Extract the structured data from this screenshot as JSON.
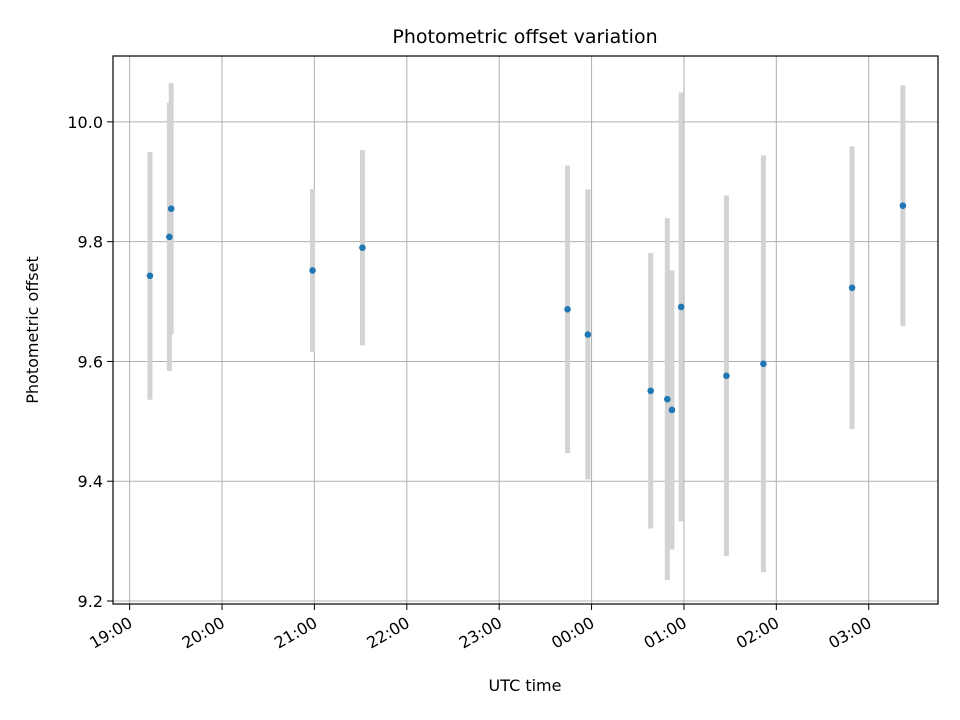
{
  "chart_data": {
    "type": "scatter",
    "title": "Photometric offset variation",
    "xlabel": "UTC time",
    "ylabel": "Photometric offset",
    "x_unit": "hours since 19:00 UTC",
    "xlim": [
      -0.18,
      8.75
    ],
    "ylim": [
      9.195,
      10.11
    ],
    "grid": true,
    "x_ticks": [
      {
        "value": 0,
        "label": "19:00"
      },
      {
        "value": 1,
        "label": "20:00"
      },
      {
        "value": 2,
        "label": "21:00"
      },
      {
        "value": 3,
        "label": "22:00"
      },
      {
        "value": 4,
        "label": "23:00"
      },
      {
        "value": 5,
        "label": "00:00"
      },
      {
        "value": 6,
        "label": "01:00"
      },
      {
        "value": 7,
        "label": "02:00"
      },
      {
        "value": 8,
        "label": "03:00"
      }
    ],
    "y_ticks": [
      {
        "value": 9.2,
        "label": "9.2"
      },
      {
        "value": 9.4,
        "label": "9.4"
      },
      {
        "value": 9.6,
        "label": "9.6"
      },
      {
        "value": 9.8,
        "label": "9.8"
      },
      {
        "value": 10.0,
        "label": "10.0"
      }
    ],
    "colors": {
      "point": "#1f77b4",
      "errorbar": "#d3d3d3",
      "grid": "#b0b0b0"
    },
    "points": [
      {
        "x": 0.22,
        "y": 9.743,
        "err": 0.207
      },
      {
        "x": 0.43,
        "y": 9.808,
        "err": 0.224
      },
      {
        "x": 0.45,
        "y": 9.855,
        "err": 0.21
      },
      {
        "x": 1.98,
        "y": 9.752,
        "err": 0.136
      },
      {
        "x": 2.52,
        "y": 9.79,
        "err": 0.163
      },
      {
        "x": 4.74,
        "y": 9.687,
        "err": 0.24
      },
      {
        "x": 4.96,
        "y": 9.645,
        "err": 0.242
      },
      {
        "x": 5.64,
        "y": 9.551,
        "err": 0.23
      },
      {
        "x": 5.82,
        "y": 9.537,
        "err": 0.302
      },
      {
        "x": 5.87,
        "y": 9.519,
        "err": 0.233
      },
      {
        "x": 5.97,
        "y": 9.691,
        "err": 0.358
      },
      {
        "x": 6.46,
        "y": 9.576,
        "err": 0.301
      },
      {
        "x": 6.86,
        "y": 9.596,
        "err": 0.348
      },
      {
        "x": 7.82,
        "y": 9.723,
        "err": 0.236
      },
      {
        "x": 8.37,
        "y": 9.86,
        "err": 0.201
      }
    ]
  }
}
